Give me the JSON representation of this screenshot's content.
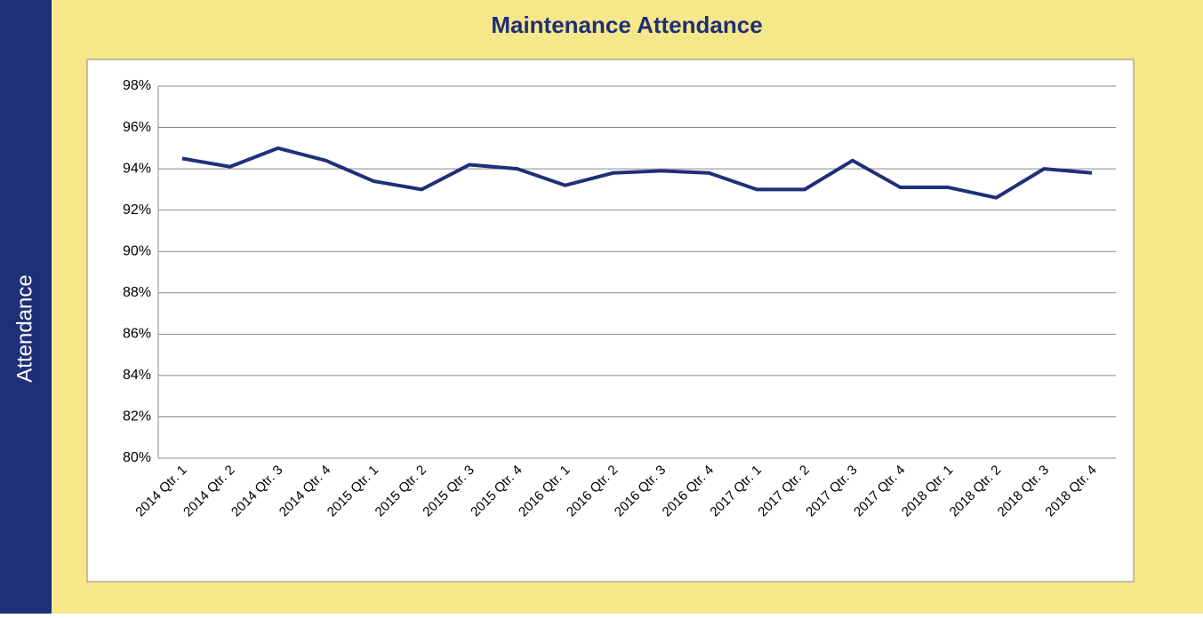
{
  "chart_data": {
    "type": "line",
    "title": "Maintenance Attendance",
    "y_label": "Attendance",
    "categories": [
      "2014 Qtr. 1",
      "2014 Qtr. 2",
      "2014 Qtr. 3",
      "2014 Qtr. 4",
      "2015 Qtr. 1",
      "2015 Qtr. 2",
      "2015 Qtr. 3",
      "2015 Qtr. 4",
      "2016 Qtr. 1",
      "2016 Qtr. 2",
      "2016 Qtr. 3",
      "2016 Qtr. 4",
      "2017 Qtr. 1",
      "2017 Qtr. 2",
      "2017 Qtr. 3",
      "2017 Qtr. 4",
      "2018 Qtr. 1",
      "2018 Qtr. 2",
      "2018 Qtr. 3",
      "2018 Qtr. 4"
    ],
    "series": [
      {
        "name": "Attendance",
        "color": "#1f2f78",
        "values": [
          94.5,
          94.1,
          95.0,
          94.4,
          93.4,
          93.0,
          94.2,
          94.0,
          93.2,
          93.8,
          93.9,
          93.8,
          93.0,
          93.0,
          94.4,
          93.1,
          93.1,
          92.6,
          94.0,
          93.8
        ]
      }
    ],
    "ylim": [
      80,
      98
    ],
    "yticks": [
      {
        "value": 80,
        "label": "80%"
      },
      {
        "value": 82,
        "label": "82%"
      },
      {
        "value": 84,
        "label": "84%"
      },
      {
        "value": 86,
        "label": "86%"
      },
      {
        "value": 88,
        "label": "88%"
      },
      {
        "value": 90,
        "label": "90%"
      },
      {
        "value": 92,
        "label": "92%"
      },
      {
        "value": 94,
        "label": "94%"
      },
      {
        "value": 96,
        "label": "96%"
      },
      {
        "value": 98,
        "label": "98%"
      }
    ],
    "grid": true
  }
}
